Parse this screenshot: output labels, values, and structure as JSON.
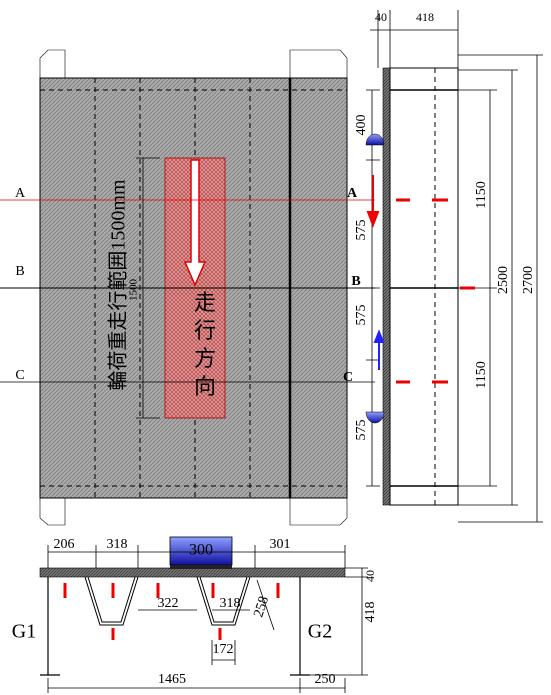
{
  "plan": {
    "section_labels_left": [
      "A",
      "B",
      "C"
    ],
    "section_labels_right": [
      "A",
      "B",
      "C"
    ],
    "load_range_label": "輪荷重走行範囲1500mm",
    "load_range_dim": "1500",
    "direction_label": [
      "走",
      "行",
      "方",
      "向"
    ]
  },
  "side": {
    "top_dims": [
      "40",
      "418"
    ],
    "left_dims": [
      "400",
      "575",
      "575",
      "575"
    ],
    "right_dims": [
      "1150",
      "1150"
    ],
    "overall_dims": [
      "2500",
      "2700"
    ]
  },
  "section": {
    "top_dims": [
      "206",
      "318",
      "301"
    ],
    "load_width": "300",
    "inner_dims": [
      "322",
      "318",
      "258",
      "172"
    ],
    "depth_dims": [
      "40",
      "418"
    ],
    "girders": [
      "G1",
      "G2"
    ],
    "bottom_dims": [
      "1465",
      "250"
    ]
  }
}
